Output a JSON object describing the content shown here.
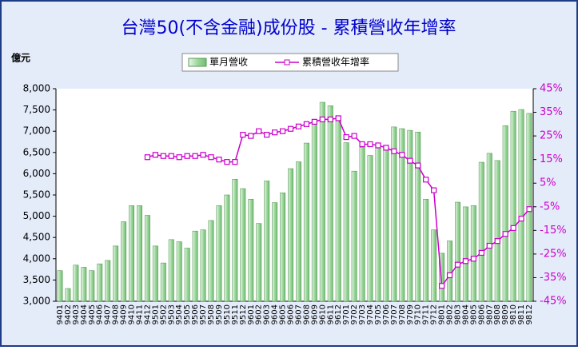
{
  "chart_data": {
    "type": "bar-line",
    "title": "台灣50(不含金融)成份股 - 累積營收年增率",
    "y_label": "億元",
    "legend": "top",
    "categories": [
      "9401",
      "9402",
      "9403",
      "9404",
      "9405",
      "9406",
      "9407",
      "9408",
      "9409",
      "9410",
      "9411",
      "9412",
      "9501",
      "9502",
      "9503",
      "9504",
      "9505",
      "9506",
      "9507",
      "9508",
      "9509",
      "9510",
      "9511",
      "9512",
      "9601",
      "9602",
      "9603",
      "9604",
      "9605",
      "9606",
      "9607",
      "9608",
      "9609",
      "9610",
      "9611",
      "9612",
      "9701",
      "9702",
      "9703",
      "9704",
      "9705",
      "9706",
      "9707",
      "9708",
      "9709",
      "9710",
      "9711",
      "9712",
      "9801",
      "9802",
      "9803",
      "9804",
      "9805",
      "9806",
      "9807",
      "9808",
      "9809",
      "9810",
      "9811",
      "9812"
    ],
    "series": [
      {
        "name": "單月營收",
        "type": "bar",
        "color": "#9fd89f",
        "values": [
          3720,
          3300,
          3850,
          3800,
          3720,
          3880,
          3960,
          4300,
          4870,
          5250,
          5250,
          5020,
          4300,
          3900,
          4450,
          4400,
          4250,
          4650,
          4680,
          4900,
          5250,
          5500,
          5870,
          5650,
          5400,
          4830,
          5830,
          5320,
          5550,
          6120,
          6280,
          6720,
          7180,
          7680,
          7600,
          7350,
          6730,
          6060,
          6620,
          6430,
          6640,
          6670,
          7100,
          7060,
          7020,
          6980,
          5400,
          4680,
          4130,
          4420,
          5330,
          5220,
          5250,
          6270,
          6480,
          6310,
          7130,
          7470,
          7510,
          7420
        ]
      },
      {
        "name": "累積營收年增率",
        "type": "line",
        "axis": "y2",
        "color": "#cc00cc",
        "values": [
          null,
          null,
          null,
          null,
          null,
          null,
          null,
          null,
          null,
          null,
          null,
          16,
          17,
          16.5,
          16.5,
          16,
          16.5,
          16.5,
          17,
          16,
          15,
          14,
          14,
          25.5,
          25,
          27,
          25.5,
          26.5,
          27,
          28,
          29,
          30,
          31,
          32,
          32,
          32.5,
          24.5,
          25,
          21.5,
          21.5,
          21,
          20,
          18.5,
          17,
          14.5,
          12.5,
          6.5,
          2,
          -38.5,
          -34,
          -29.5,
          -28,
          -27,
          -24.5,
          -21.5,
          -19.5,
          -16.5,
          -14,
          -10,
          -6
        ]
      }
    ],
    "ylim": [
      3000,
      8000
    ],
    "yticks": [
      {
        "value": 3000,
        "label": "3,000"
      },
      {
        "value": 3500,
        "label": "3,500"
      },
      {
        "value": 4000,
        "label": "4,000"
      },
      {
        "value": 4500,
        "label": "4,500"
      },
      {
        "value": 5000,
        "label": "5,000"
      },
      {
        "value": 5500,
        "label": "5,500"
      },
      {
        "value": 6000,
        "label": "6,000"
      },
      {
        "value": 6500,
        "label": "6,500"
      },
      {
        "value": 7000,
        "label": "7,000"
      },
      {
        "value": 7500,
        "label": "7,500"
      },
      {
        "value": 8000,
        "label": "8,000"
      }
    ],
    "y2lim": [
      -45,
      45
    ],
    "y2ticks": [
      {
        "value": 45,
        "label": "45%"
      },
      {
        "value": 35,
        "label": "35%"
      },
      {
        "value": 25,
        "label": "25%"
      },
      {
        "value": 15,
        "label": "15%"
      },
      {
        "value": 5,
        "label": "5%"
      },
      {
        "value": -5,
        "label": "-5%"
      },
      {
        "value": -15,
        "label": "-15%"
      },
      {
        "value": -25,
        "label": "-25%"
      },
      {
        "value": -35,
        "label": "-35%"
      },
      {
        "value": -45,
        "label": "-45%"
      }
    ],
    "grid": false
  }
}
